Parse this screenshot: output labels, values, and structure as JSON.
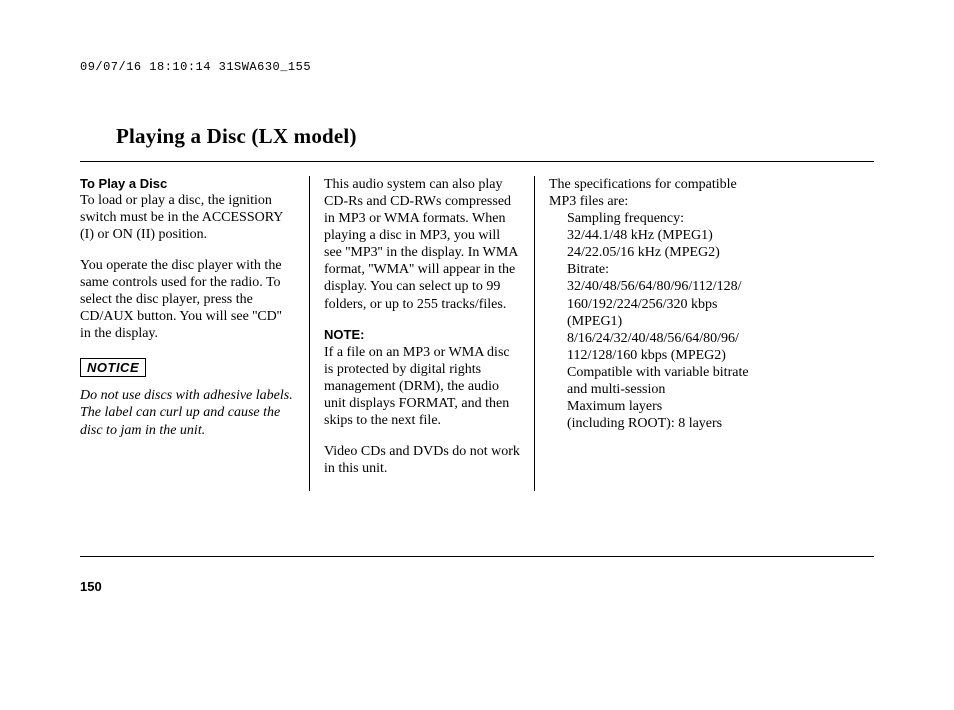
{
  "header_stamp": "09/07/16 18:10:14 31SWA630_155",
  "title": "Playing a Disc (LX model)",
  "col1": {
    "subhead": "To Play a Disc",
    "p1": "To load or play a disc, the ignition switch must be in the ACCESSORY (I) or ON (II) position.",
    "p2": "You operate the disc player with the same controls used for the radio. To select the disc player, press the CD/AUX button. You will see ''CD'' in the display.",
    "notice": "NOTICE",
    "p3": "Do not use discs with adhesive labels. The label can curl up and cause the disc to jam in the unit."
  },
  "col2": {
    "p1": "This audio system can also play CD-Rs and CD-RWs compressed in MP3 or WMA formats. When playing a disc in MP3, you will see ''MP3'' in the display. In WMA format, ''WMA'' will appear in the display. You can select up to 99 folders, or up to 255 tracks/files.",
    "note_label": "NOTE:",
    "p2": "If a file on an MP3 or WMA disc is protected by digital rights management (DRM), the audio unit displays FORMAT, and then skips to the next file.",
    "p3": "Video CDs and DVDs do not work in this unit."
  },
  "col3": {
    "intro": "The specifications for compatible MP3 files are:",
    "specs": {
      "l1": "Sampling frequency:",
      "l2": "32/44.1/48 kHz (MPEG1)",
      "l3": "24/22.05/16 kHz (MPEG2)",
      "l4": "Bitrate:",
      "l5": "32/40/48/56/64/80/96/112/128/",
      "l6": "160/192/224/256/320 kbps",
      "l7": "(MPEG1)",
      "l8": "8/16/24/32/40/48/56/64/80/96/",
      "l9": "112/128/160 kbps (MPEG2)",
      "l10": "Compatible with variable bitrate and multi-session",
      "l11": "Maximum layers",
      "l12": "(including ROOT): 8 layers"
    }
  },
  "page_number": "150"
}
